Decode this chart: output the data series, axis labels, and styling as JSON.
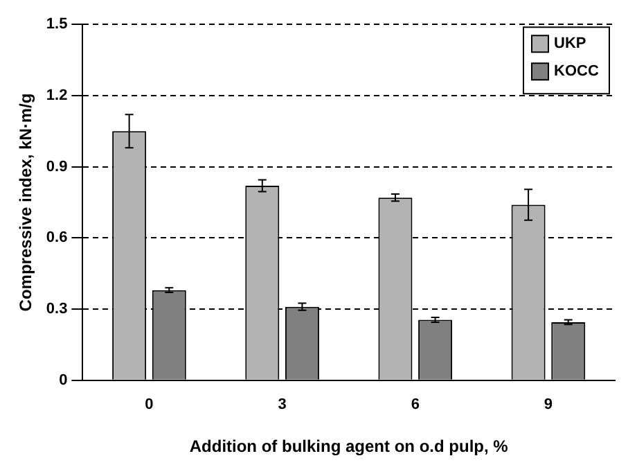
{
  "chart_data": {
    "type": "bar",
    "xlabel": "Addition of bulking agent on o.d pulp, %",
    "ylabel": "Compressive index, kN·m/g",
    "categories": [
      "0",
      "3",
      "6",
      "9"
    ],
    "series": [
      {
        "name": "UKP",
        "color": "#b3b3b3",
        "values": [
          1.05,
          0.82,
          0.77,
          0.74
        ],
        "errors": [
          0.07,
          0.025,
          0.015,
          0.065
        ]
      },
      {
        "name": "KOCC",
        "color": "#808080",
        "values": [
          0.38,
          0.31,
          0.255,
          0.245
        ],
        "errors": [
          0.01,
          0.015,
          0.01,
          0.01
        ]
      }
    ],
    "ylim": [
      0,
      1.5
    ],
    "yticks": [
      0,
      0.3,
      0.6,
      0.9,
      1.2,
      1.5
    ],
    "grid": "y",
    "legend": "top right"
  }
}
